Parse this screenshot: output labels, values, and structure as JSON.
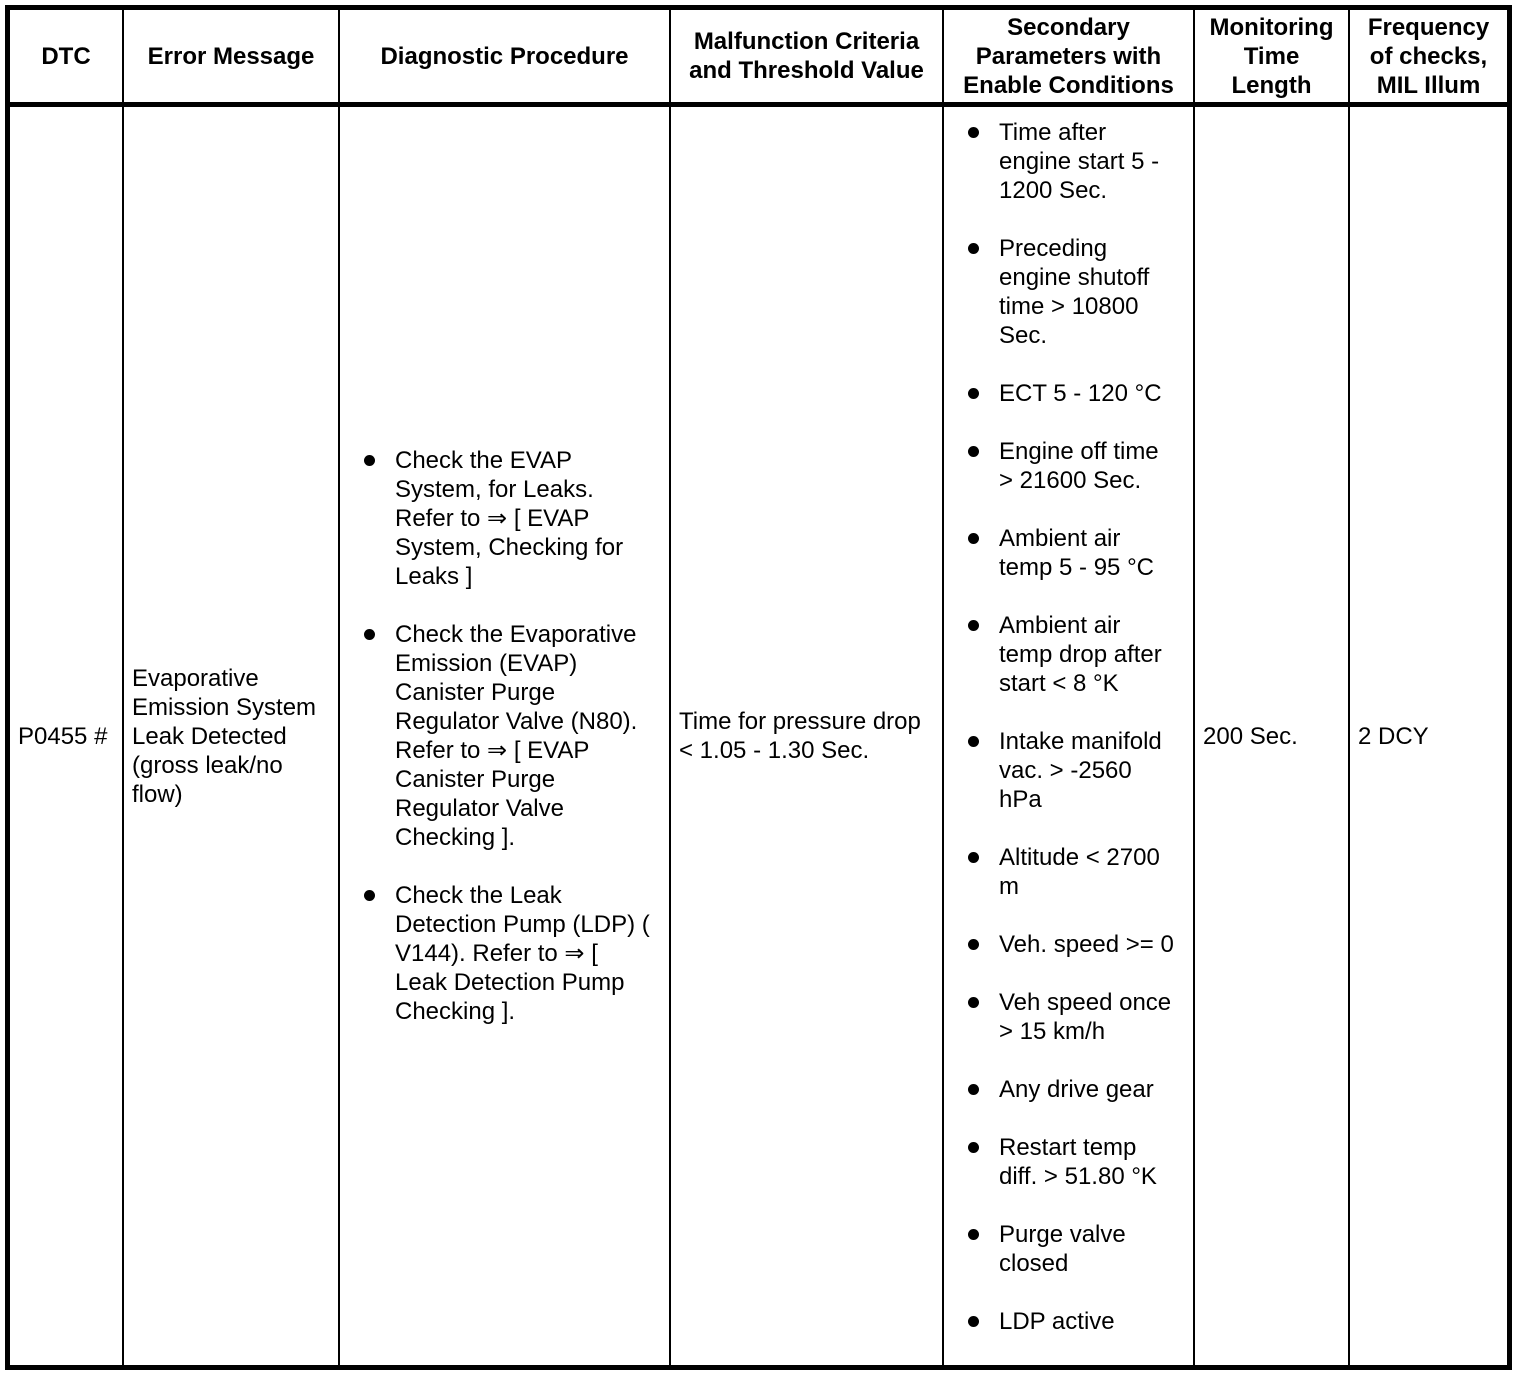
{
  "colors": {
    "background": "#ffffff",
    "text": "#000000",
    "border": "#000000"
  },
  "table": {
    "headers": [
      "DTC",
      "Error Message",
      "Diagnostic Procedure",
      "Malfunction Criteria\nand Threshold Value",
      "Secondary\nParameters with\nEnable Conditions",
      "Monitoring\nTime\nLength",
      "Frequency\nof checks,\nMIL Illum"
    ],
    "row": {
      "dtc": "P0455 #",
      "error_message": "Evaporative\nEmission System\nLeak Detected\n(gross leak/no\nflow)",
      "diagnostic_procedure": [
        "Check the EVAP\nSystem, for Leaks.\nRefer to ⇒ [ EVAP\nSystem, Checking for\nLeaks ]",
        "Check the Evaporative\nEmission (EVAP)\nCanister Purge\nRegulator Valve (N80).\nRefer to ⇒ [ EVAP\nCanister Purge\nRegulator Valve\nChecking ].",
        "Check the Leak\nDetection Pump (LDP) (\nV144). Refer to ⇒ [\nLeak Detection Pump\nChecking ]."
      ],
      "malfunction_criteria": "Time for pressure drop\n< 1.05 - 1.30 Sec.",
      "secondary_parameters": [
        "Time after\nengine start 5 -\n1200 Sec.",
        "Preceding\nengine shutoff\ntime > 10800\nSec.",
        "ECT 5 - 120 °C",
        "Engine off time\n> 21600 Sec.",
        "Ambient air\ntemp 5 - 95 °C",
        "Ambient air\ntemp drop after\nstart < 8 °K",
        "Intake manifold\nvac. > -2560\nhPa",
        "Altitude < 2700\nm",
        "Veh. speed >= 0",
        "Veh speed once\n> 15 km/h",
        "Any drive gear",
        "Restart temp\ndiff. > 51.80 °K",
        "Purge valve\nclosed",
        "LDP active"
      ],
      "monitoring_time_length": "200 Sec.",
      "frequency_of_checks": "2 DCY"
    }
  }
}
